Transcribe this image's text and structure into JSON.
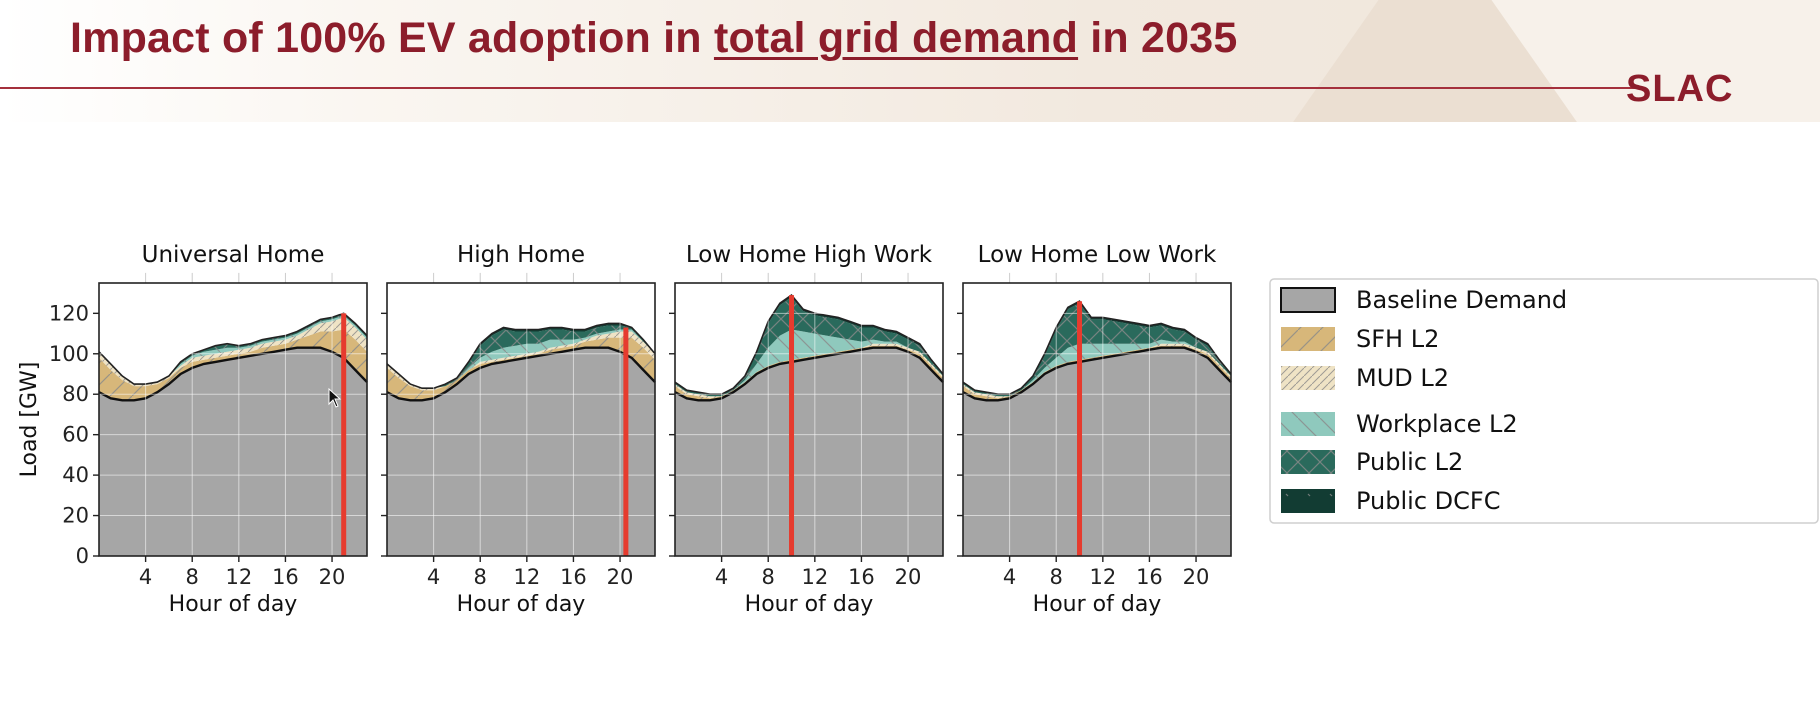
{
  "slide": {
    "title_part1": "Impact of 100% EV adoption in ",
    "title_underlined": "total grid demand",
    "title_part2": " in 2035",
    "logo_text": "SLAC"
  },
  "colors": {
    "baseline": "#a6a6a6",
    "sfh_l2": "#d7b77a",
    "mud_l2": "#efe3c5",
    "workplace_l2": "#8fc9bd",
    "public_l2": "#2a6a5c",
    "public_dcfc": "#123c33",
    "marker": "#e63b2e",
    "hatch": "#8a8a8a"
  },
  "chart_data": [
    {
      "type": "area",
      "title": "Universal Home",
      "xlabel": "Hour of day",
      "ylabel": "Load [GW]",
      "xlim": [
        0,
        23
      ],
      "ylim": [
        0,
        135
      ],
      "xticks": [
        4,
        8,
        12,
        16,
        20
      ],
      "yticks": [
        0,
        20,
        40,
        60,
        80,
        100,
        120
      ],
      "grid": true,
      "marker_hour": 21,
      "x": [
        0,
        1,
        2,
        3,
        4,
        5,
        6,
        7,
        8,
        9,
        10,
        11,
        12,
        13,
        14,
        15,
        16,
        17,
        18,
        19,
        20,
        21,
        22,
        23
      ],
      "series": [
        {
          "name": "Baseline Demand",
          "values": [
            81,
            78,
            77,
            77,
            78,
            81,
            85,
            90,
            93,
            95,
            96,
            97,
            98,
            99,
            100,
            101,
            102,
            103,
            103,
            103,
            101,
            98,
            92,
            86
          ]
        },
        {
          "name": "SFH L2",
          "values": [
            17,
            14,
            10,
            7,
            6,
            4,
            3,
            3,
            3,
            2,
            2,
            2,
            2,
            2,
            3,
            3,
            3,
            4,
            6,
            8,
            10,
            14,
            15,
            15
          ]
        },
        {
          "name": "MUD L2",
          "values": [
            3,
            3,
            2,
            1,
            1,
            1,
            1,
            1,
            2,
            2,
            2,
            2,
            2,
            2,
            2,
            2,
            2,
            2,
            3,
            4,
            5,
            6,
            6,
            6
          ]
        },
        {
          "name": "Workplace L2",
          "values": [
            0,
            0,
            0,
            0,
            0,
            0,
            0,
            1,
            1,
            2,
            2,
            2,
            1,
            1,
            1,
            1,
            1,
            1,
            1,
            1,
            1,
            1,
            1,
            1
          ]
        },
        {
          "name": "Public L2",
          "values": [
            0,
            0,
            0,
            0,
            0,
            0,
            0,
            1,
            1,
            1,
            2,
            2,
            1,
            1,
            1,
            1,
            1,
            1,
            1,
            1,
            1,
            1,
            1,
            1
          ]
        },
        {
          "name": "Public DCFC",
          "values": [
            0,
            0,
            0,
            0,
            0,
            0,
            0,
            0,
            0,
            0,
            0,
            0,
            0,
            0,
            0,
            0,
            0,
            0,
            0,
            0,
            0,
            0,
            0,
            0
          ]
        }
      ]
    },
    {
      "type": "area",
      "title": "High Home",
      "xlabel": "Hour of day",
      "ylabel": "",
      "xlim": [
        0,
        23
      ],
      "ylim": [
        0,
        135
      ],
      "xticks": [
        4,
        8,
        12,
        16,
        20
      ],
      "yticks": [
        0,
        20,
        40,
        60,
        80,
        100,
        120
      ],
      "grid": true,
      "marker_hour": 20.5,
      "x": [
        0,
        1,
        2,
        3,
        4,
        5,
        6,
        7,
        8,
        9,
        10,
        11,
        12,
        13,
        14,
        15,
        16,
        17,
        18,
        19,
        20,
        21,
        22,
        23
      ],
      "series": [
        {
          "name": "Baseline Demand",
          "values": [
            81,
            78,
            77,
            77,
            78,
            81,
            85,
            90,
            93,
            95,
            96,
            97,
            98,
            99,
            100,
            101,
            102,
            103,
            103,
            103,
            101,
            98,
            92,
            86
          ]
        },
        {
          "name": "SFH L2",
          "values": [
            12,
            10,
            7,
            5,
            4,
            3,
            2,
            2,
            2,
            1,
            1,
            1,
            1,
            1,
            2,
            2,
            2,
            3,
            4,
            5,
            7,
            10,
            11,
            11
          ]
        },
        {
          "name": "MUD L2",
          "values": [
            2,
            2,
            1,
            1,
            1,
            0,
            0,
            0,
            1,
            1,
            1,
            1,
            1,
            1,
            1,
            1,
            1,
            1,
            2,
            2,
            3,
            3,
            3,
            3
          ]
        },
        {
          "name": "Workplace L2",
          "values": [
            0,
            0,
            0,
            0,
            0,
            0,
            0,
            1,
            2,
            4,
            5,
            5,
            5,
            4,
            4,
            3,
            2,
            1,
            1,
            1,
            1,
            1,
            0,
            0
          ]
        },
        {
          "name": "Public L2",
          "values": [
            0,
            0,
            0,
            0,
            0,
            1,
            1,
            3,
            6,
            8,
            9,
            7,
            6,
            6,
            5,
            5,
            4,
            3,
            3,
            3,
            2,
            1,
            1,
            0
          ]
        },
        {
          "name": "Public DCFC",
          "values": [
            0,
            0,
            0,
            0,
            0,
            0,
            0,
            0,
            1,
            1,
            1,
            1,
            1,
            1,
            1,
            1,
            1,
            1,
            1,
            1,
            1,
            0,
            0,
            0
          ]
        }
      ]
    },
    {
      "type": "area",
      "title": "Low Home High Work",
      "xlabel": "Hour of day",
      "ylabel": "",
      "xlim": [
        0,
        23
      ],
      "ylim": [
        0,
        135
      ],
      "xticks": [
        4,
        8,
        12,
        16,
        20
      ],
      "yticks": [
        0,
        20,
        40,
        60,
        80,
        100,
        120
      ],
      "grid": true,
      "marker_hour": 10,
      "x": [
        0,
        1,
        2,
        3,
        4,
        5,
        6,
        7,
        8,
        9,
        10,
        11,
        12,
        13,
        14,
        15,
        16,
        17,
        18,
        19,
        20,
        21,
        22,
        23
      ],
      "series": [
        {
          "name": "Baseline Demand",
          "values": [
            81,
            78,
            77,
            77,
            78,
            81,
            85,
            90,
            93,
            95,
            96,
            97,
            98,
            99,
            100,
            101,
            102,
            103,
            103,
            103,
            101,
            98,
            92,
            86
          ]
        },
        {
          "name": "SFH L2",
          "values": [
            3,
            2,
            2,
            1,
            1,
            1,
            1,
            1,
            1,
            1,
            1,
            1,
            1,
            1,
            1,
            1,
            1,
            1,
            1,
            1,
            1,
            2,
            2,
            2
          ]
        },
        {
          "name": "MUD L2",
          "values": [
            1,
            1,
            1,
            1,
            0,
            0,
            0,
            0,
            0,
            0,
            0,
            0,
            0,
            0,
            0,
            0,
            0,
            1,
            1,
            1,
            1,
            1,
            1,
            1
          ]
        },
        {
          "name": "Workplace L2",
          "values": [
            0,
            0,
            0,
            0,
            0,
            0,
            1,
            4,
            9,
            13,
            15,
            13,
            11,
            9,
            7,
            5,
            3,
            2,
            1,
            1,
            0,
            0,
            0,
            0
          ]
        },
        {
          "name": "Public L2",
          "values": [
            1,
            1,
            1,
            1,
            1,
            1,
            2,
            5,
            12,
            15,
            16,
            10,
            9,
            9,
            9,
            8,
            7,
            6,
            5,
            4,
            4,
            3,
            2,
            1
          ]
        },
        {
          "name": "Public DCFC",
          "values": [
            0,
            0,
            0,
            0,
            0,
            0,
            0,
            1,
            1,
            1,
            1,
            1,
            1,
            1,
            1,
            1,
            1,
            1,
            1,
            1,
            1,
            1,
            0,
            0
          ]
        }
      ]
    },
    {
      "type": "area",
      "title": "Low Home Low Work",
      "xlabel": "Hour of day",
      "ylabel": "",
      "xlim": [
        0,
        23
      ],
      "ylim": [
        0,
        135
      ],
      "xticks": [
        4,
        8,
        12,
        16,
        20
      ],
      "yticks": [
        0,
        20,
        40,
        60,
        80,
        100,
        120
      ],
      "grid": true,
      "marker_hour": 10,
      "x": [
        0,
        1,
        2,
        3,
        4,
        5,
        6,
        7,
        8,
        9,
        10,
        11,
        12,
        13,
        14,
        15,
        16,
        17,
        18,
        19,
        20,
        21,
        22,
        23
      ],
      "series": [
        {
          "name": "Baseline Demand",
          "values": [
            81,
            78,
            77,
            77,
            78,
            81,
            85,
            90,
            93,
            95,
            96,
            97,
            98,
            99,
            100,
            101,
            102,
            103,
            103,
            103,
            101,
            98,
            92,
            86
          ]
        },
        {
          "name": "SFH L2",
          "values": [
            3,
            2,
            2,
            1,
            1,
            1,
            1,
            1,
            1,
            1,
            1,
            1,
            1,
            1,
            1,
            1,
            1,
            1,
            1,
            1,
            1,
            2,
            2,
            2
          ]
        },
        {
          "name": "MUD L2",
          "values": [
            1,
            1,
            1,
            1,
            0,
            0,
            0,
            0,
            0,
            0,
            0,
            0,
            0,
            0,
            0,
            0,
            0,
            1,
            1,
            1,
            1,
            1,
            1,
            1
          ]
        },
        {
          "name": "Workplace L2",
          "values": [
            0,
            0,
            0,
            0,
            0,
            0,
            1,
            2,
            4,
            7,
            8,
            7,
            6,
            5,
            4,
            3,
            2,
            2,
            1,
            1,
            0,
            0,
            0,
            0
          ]
        },
        {
          "name": "Public L2",
          "values": [
            1,
            1,
            1,
            1,
            1,
            1,
            2,
            6,
            14,
            19,
            20,
            12,
            12,
            11,
            10,
            9,
            8,
            7,
            6,
            5,
            4,
            3,
            2,
            1
          ]
        },
        {
          "name": "Public DCFC",
          "values": [
            0,
            0,
            0,
            0,
            0,
            0,
            0,
            1,
            1,
            1,
            1,
            1,
            1,
            1,
            1,
            1,
            1,
            1,
            1,
            1,
            1,
            1,
            0,
            0
          ]
        }
      ]
    }
  ],
  "legend": {
    "position": "right",
    "items": [
      {
        "label": "Baseline Demand",
        "color": "#a6a6a6",
        "hatch": "none"
      },
      {
        "label": "SFH L2",
        "color": "#d7b77a",
        "hatch": "slash"
      },
      {
        "label": "MUD L2",
        "color": "#efe3c5",
        "hatch": "dense-slash"
      },
      {
        "label": "Workplace L2",
        "color": "#8fc9bd",
        "hatch": "backslash"
      },
      {
        "label": "Public L2",
        "color": "#2a6a5c",
        "hatch": "cross"
      },
      {
        "label": "Public DCFC",
        "color": "#123c33",
        "hatch": "dots"
      }
    ]
  }
}
